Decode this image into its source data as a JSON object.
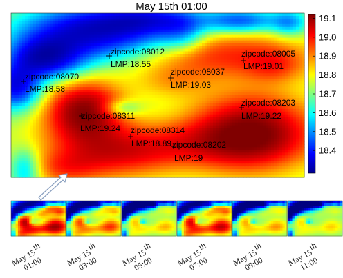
{
  "chart_data": {
    "type": "heatmap",
    "title": "May 15th 01:00",
    "colorbar": {
      "ticks": [
        "19.1",
        "19.0",
        "18.9",
        "18.8",
        "18.7",
        "18.6",
        "18.5",
        "18.4"
      ],
      "range": [
        18.28,
        19.12
      ],
      "colormap": "jet"
    },
    "points": [
      {
        "zipcode": "zipcode:08012",
        "lmp": "LMP:18.55"
      },
      {
        "zipcode": "zipcode:08005",
        "lmp": "LMP:19.01"
      },
      {
        "zipcode": "zipcode:08070",
        "lmp": "LMP:18.58"
      },
      {
        "zipcode": "zipcode:08037",
        "lmp": "LMP:19.03"
      },
      {
        "zipcode": "zipcode:08203",
        "lmp": "LMP:19.22"
      },
      {
        "zipcode": "zipcode:08311",
        "lmp": "LMP:19.24"
      },
      {
        "zipcode": "zipcode:08314",
        "lmp": "LMP:18.89"
      },
      {
        "zipcode": "zipcode:08202",
        "lmp": "LMP:19"
      }
    ],
    "timeline": [
      {
        "date": "May 15",
        "sup": "th",
        "time": "01:00"
      },
      {
        "date": "May 15",
        "sup": "th",
        "time": "03:00"
      },
      {
        "date": "May 15",
        "sup": "th",
        "time": "05:00"
      },
      {
        "date": "May 15",
        "sup": "th",
        "time": "07:00"
      },
      {
        "date": "May 15",
        "sup": "th",
        "time": "09:00"
      },
      {
        "date": "May 15",
        "sup": "th",
        "time": "11:00"
      }
    ]
  }
}
